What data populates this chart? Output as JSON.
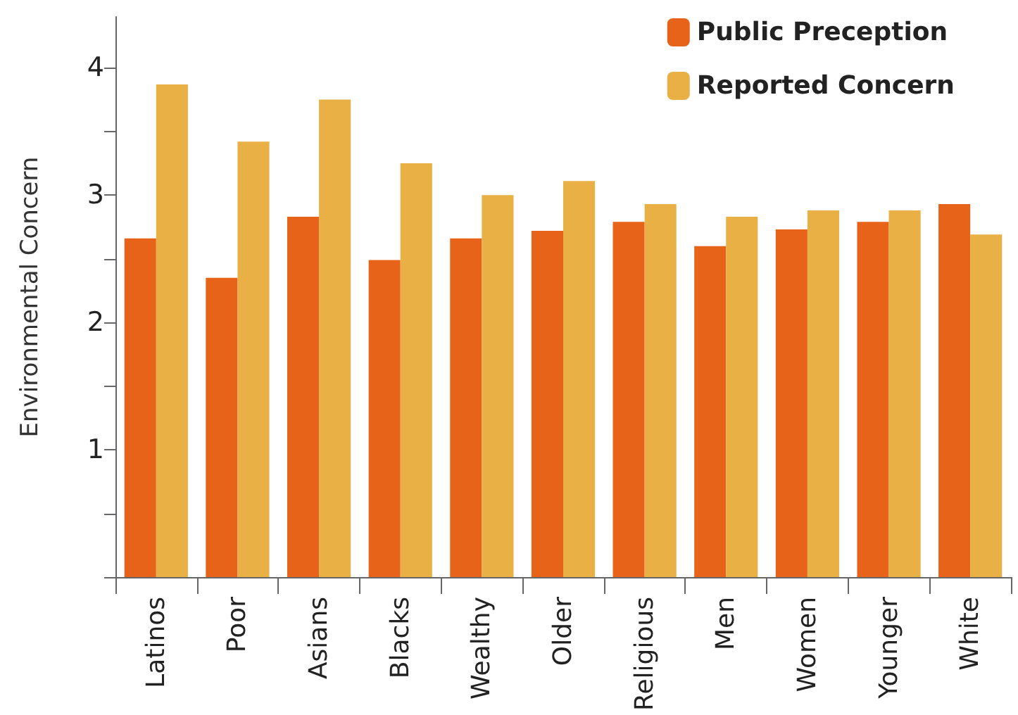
{
  "chart_data": {
    "type": "bar",
    "ylabel": "Environmental Concern",
    "categories": [
      "Latinos",
      "Poor",
      "Asians",
      "Blacks",
      "Wealthy",
      "Older",
      "Religious",
      "Men",
      "Women",
      "Younger",
      "White"
    ],
    "series": [
      {
        "name": "Public Preception",
        "color": "#e8631a",
        "values": [
          2.66,
          2.35,
          2.83,
          2.49,
          2.66,
          2.72,
          2.79,
          2.6,
          2.73,
          2.79,
          2.93
        ]
      },
      {
        "name": "Reported Concern",
        "color": "#e8b045",
        "values": [
          3.87,
          3.42,
          3.75,
          3.25,
          3.0,
          3.11,
          2.93,
          2.83,
          2.88,
          2.88,
          2.69
        ]
      }
    ],
    "ylim": [
      0,
      4.4
    ],
    "yticks": [
      {
        "value": 0,
        "label": null
      },
      {
        "value": 0.5,
        "label": null
      },
      1,
      {
        "value": 1.5,
        "label": null
      },
      2,
      {
        "value": 2.5,
        "label": null
      },
      3,
      {
        "value": 3.5,
        "label": null
      },
      4
    ],
    "grid": false,
    "legend": "top right"
  }
}
